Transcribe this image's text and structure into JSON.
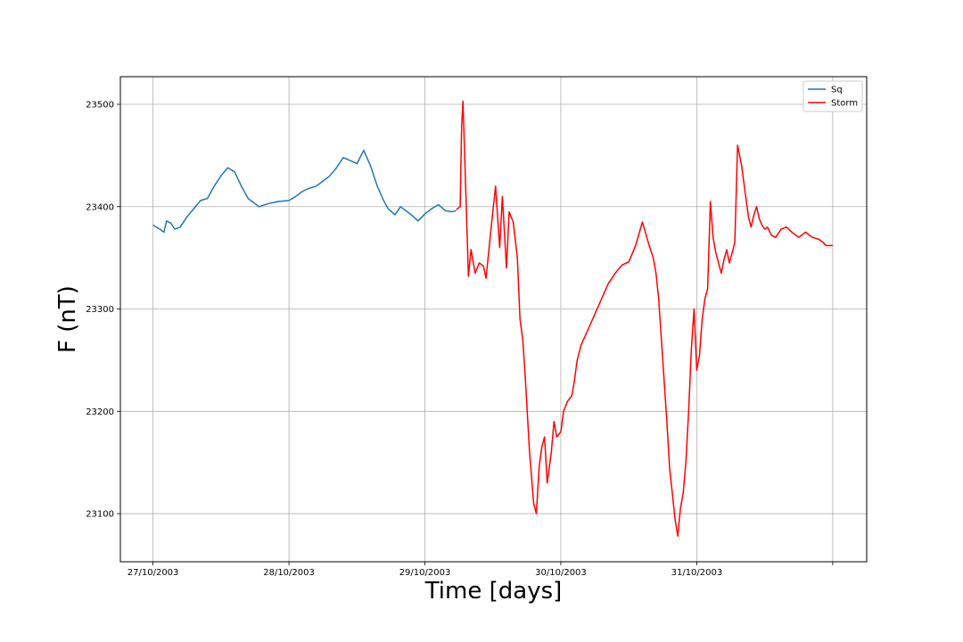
{
  "chart_data": {
    "type": "line",
    "title": "",
    "xlabel": "Time [days]",
    "ylabel": "F (nT)",
    "x_ticks": [
      "27/10/2003",
      "28/10/2003",
      "29/10/2003",
      "30/10/2003",
      "31/10/2003",
      ""
    ],
    "x_tick_values": [
      0,
      1,
      2,
      3,
      4,
      5
    ],
    "xlim": [
      -0.24,
      5.25
    ],
    "y_ticks": [
      "23100",
      "23200",
      "23300",
      "23400",
      "23500"
    ],
    "y_tick_values": [
      23100,
      23200,
      23300,
      23400,
      23500
    ],
    "ylim": [
      23053,
      23527
    ],
    "grid": true,
    "legend_position": "top-right",
    "series": [
      {
        "name": "Sq",
        "color": "#1f77b4",
        "x": [
          0.0,
          0.05,
          0.08,
          0.1,
          0.13,
          0.16,
          0.2,
          0.25,
          0.3,
          0.35,
          0.4,
          0.45,
          0.5,
          0.55,
          0.6,
          0.65,
          0.7,
          0.78,
          0.85,
          0.92,
          1.0,
          1.05,
          1.1,
          1.15,
          1.2,
          1.25,
          1.3,
          1.35,
          1.4,
          1.45,
          1.5,
          1.55,
          1.6,
          1.65,
          1.7,
          1.73,
          1.78,
          1.82,
          1.86,
          1.9,
          1.95,
          2.0,
          2.05,
          2.1,
          2.15,
          2.2,
          2.23
        ],
        "y": [
          23382,
          23378,
          23375,
          23386,
          23384,
          23378,
          23380,
          23390,
          23398,
          23406,
          23408,
          23420,
          23430,
          23438,
          23434,
          23420,
          23408,
          23400,
          23403,
          23405,
          23406,
          23410,
          23415,
          23418,
          23420,
          23425,
          23430,
          23438,
          23448,
          23445,
          23442,
          23455,
          23440,
          23420,
          23405,
          23398,
          23392,
          23400,
          23396,
          23392,
          23386,
          23393,
          23398,
          23402,
          23396,
          23395,
          23396
        ]
      },
      {
        "name": "Storm",
        "color": "#ff0000",
        "x": [
          2.23,
          2.26,
          2.27,
          2.28,
          2.29,
          2.3,
          2.31,
          2.32,
          2.33,
          2.34,
          2.35,
          2.37,
          2.4,
          2.43,
          2.45,
          2.48,
          2.5,
          2.52,
          2.55,
          2.57,
          2.6,
          2.62,
          2.65,
          2.68,
          2.7,
          2.72,
          2.74,
          2.77,
          2.8,
          2.82,
          2.84,
          2.86,
          2.88,
          2.9,
          2.93,
          2.95,
          2.97,
          3.0,
          3.02,
          3.05,
          3.08,
          3.1,
          3.12,
          3.15,
          3.2,
          3.25,
          3.3,
          3.35,
          3.4,
          3.45,
          3.5,
          3.55,
          3.6,
          3.65,
          3.68,
          3.7,
          3.72,
          3.75,
          3.78,
          3.8,
          3.82,
          3.84,
          3.86,
          3.88,
          3.9,
          3.92,
          3.94,
          3.96,
          3.98,
          4.0,
          4.02,
          4.04,
          4.06,
          4.08,
          4.1,
          4.12,
          4.14,
          4.16,
          4.18,
          4.2,
          4.22,
          4.24,
          4.26,
          4.28,
          4.3,
          4.33,
          4.36,
          4.38,
          4.4,
          4.42,
          4.44,
          4.46,
          4.48,
          4.5,
          4.52,
          4.55,
          4.58,
          4.62,
          4.66,
          4.7,
          4.75,
          4.8,
          4.85,
          4.9,
          4.93,
          4.95,
          4.97,
          5.0
        ],
        "y": [
          23397,
          23400,
          23478,
          23503,
          23462,
          23420,
          23375,
          23332,
          23345,
          23358,
          23350,
          23335,
          23345,
          23342,
          23330,
          23370,
          23395,
          23420,
          23360,
          23410,
          23340,
          23395,
          23385,
          23350,
          23290,
          23270,
          23230,
          23160,
          23110,
          23100,
          23145,
          23165,
          23175,
          23130,
          23160,
          23190,
          23175,
          23180,
          23200,
          23210,
          23215,
          23230,
          23250,
          23265,
          23280,
          23295,
          23310,
          23325,
          23335,
          23343,
          23346,
          23362,
          23385,
          23362,
          23350,
          23335,
          23310,
          23250,
          23190,
          23145,
          23120,
          23095,
          23078,
          23105,
          23120,
          23150,
          23200,
          23260,
          23300,
          23240,
          23255,
          23290,
          23310,
          23320,
          23405,
          23370,
          23355,
          23345,
          23335,
          23348,
          23358,
          23345,
          23355,
          23365,
          23460,
          23440,
          23410,
          23390,
          23380,
          23392,
          23400,
          23388,
          23382,
          23378,
          23380,
          23372,
          23370,
          23378,
          23380,
          23375,
          23370,
          23375,
          23370,
          23368,
          23365,
          23362,
          23362,
          23362
        ]
      }
    ]
  }
}
